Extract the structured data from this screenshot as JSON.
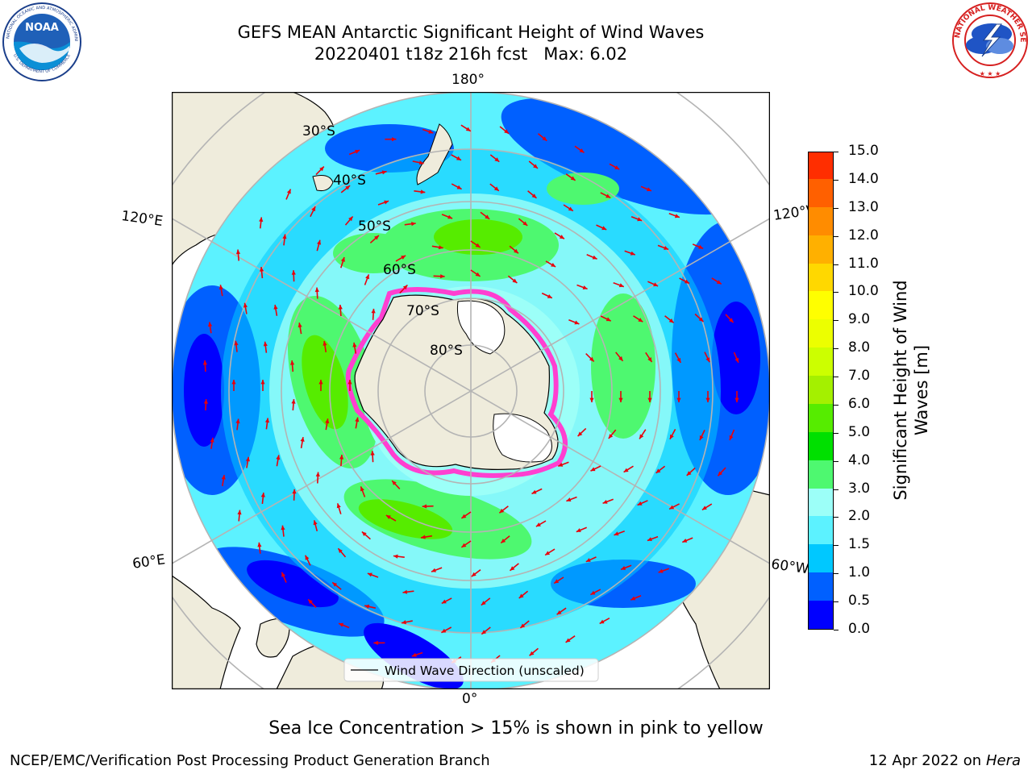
{
  "header": {
    "title_line1": "GEFS MEAN Antarctic Significant Height of Wind Waves",
    "title_line2": "20220401 t18z 216h fcst   Max: 6.02"
  },
  "logos": {
    "left": "noaa-logo",
    "right": "nws-logo",
    "left_ring_text": "NATIONAL OCEANIC AND ATMOSPHERIC ADMINISTRATION",
    "left_bottom_text": "U.S. DEPARTMENT OF COMMERCE",
    "left_center_text": "NOAA",
    "right_ring_text": "NATIONAL WEATHER SERVICE"
  },
  "map": {
    "projection": "south-polar-stereographic",
    "longitude_labels": {
      "top": "180°",
      "bottom": "0°",
      "upper_left": "120°E",
      "upper_right": "120°W",
      "lower_left": "60°E",
      "lower_right": "60°W"
    },
    "latitude_labels": [
      "30°S",
      "40°S",
      "50°S",
      "60°S",
      "70°S",
      "80°S"
    ],
    "legend": "Wind Wave Direction (unscaled)",
    "colors": {
      "land": "#efecdc",
      "ice_edge": "#ff3fd0",
      "arrow": "#e8000b",
      "grid": "#b4b4b4"
    }
  },
  "colorbar": {
    "label": "Significant Height of Wind Waves [m]",
    "ticks": [
      "0.0",
      "0.5",
      "1.0",
      "1.5",
      "2.0",
      "3.0",
      "4.0",
      "5.0",
      "6.0",
      "7.0",
      "8.0",
      "9.0",
      "10.0",
      "11.0",
      "12.0",
      "13.0",
      "14.0",
      "15.0"
    ],
    "colors": [
      "#0000ff",
      "#0060ff",
      "#00c8ff",
      "#5cf2ff",
      "#9cfff8",
      "#4ef870",
      "#00e000",
      "#56ec00",
      "#a4f000",
      "#ccff00",
      "#ecff00",
      "#ffff00",
      "#ffd800",
      "#ffb000",
      "#ff8c00",
      "#ff6000",
      "#ff2e00"
    ]
  },
  "footer": {
    "note": "Sea Ice Concentration > 15% is shown in pink to yellow",
    "credit": "NCEP/EMC/Verification Post Processing Product Generation Branch",
    "date": "12 Apr 2022 on",
    "machine": "Hera"
  }
}
